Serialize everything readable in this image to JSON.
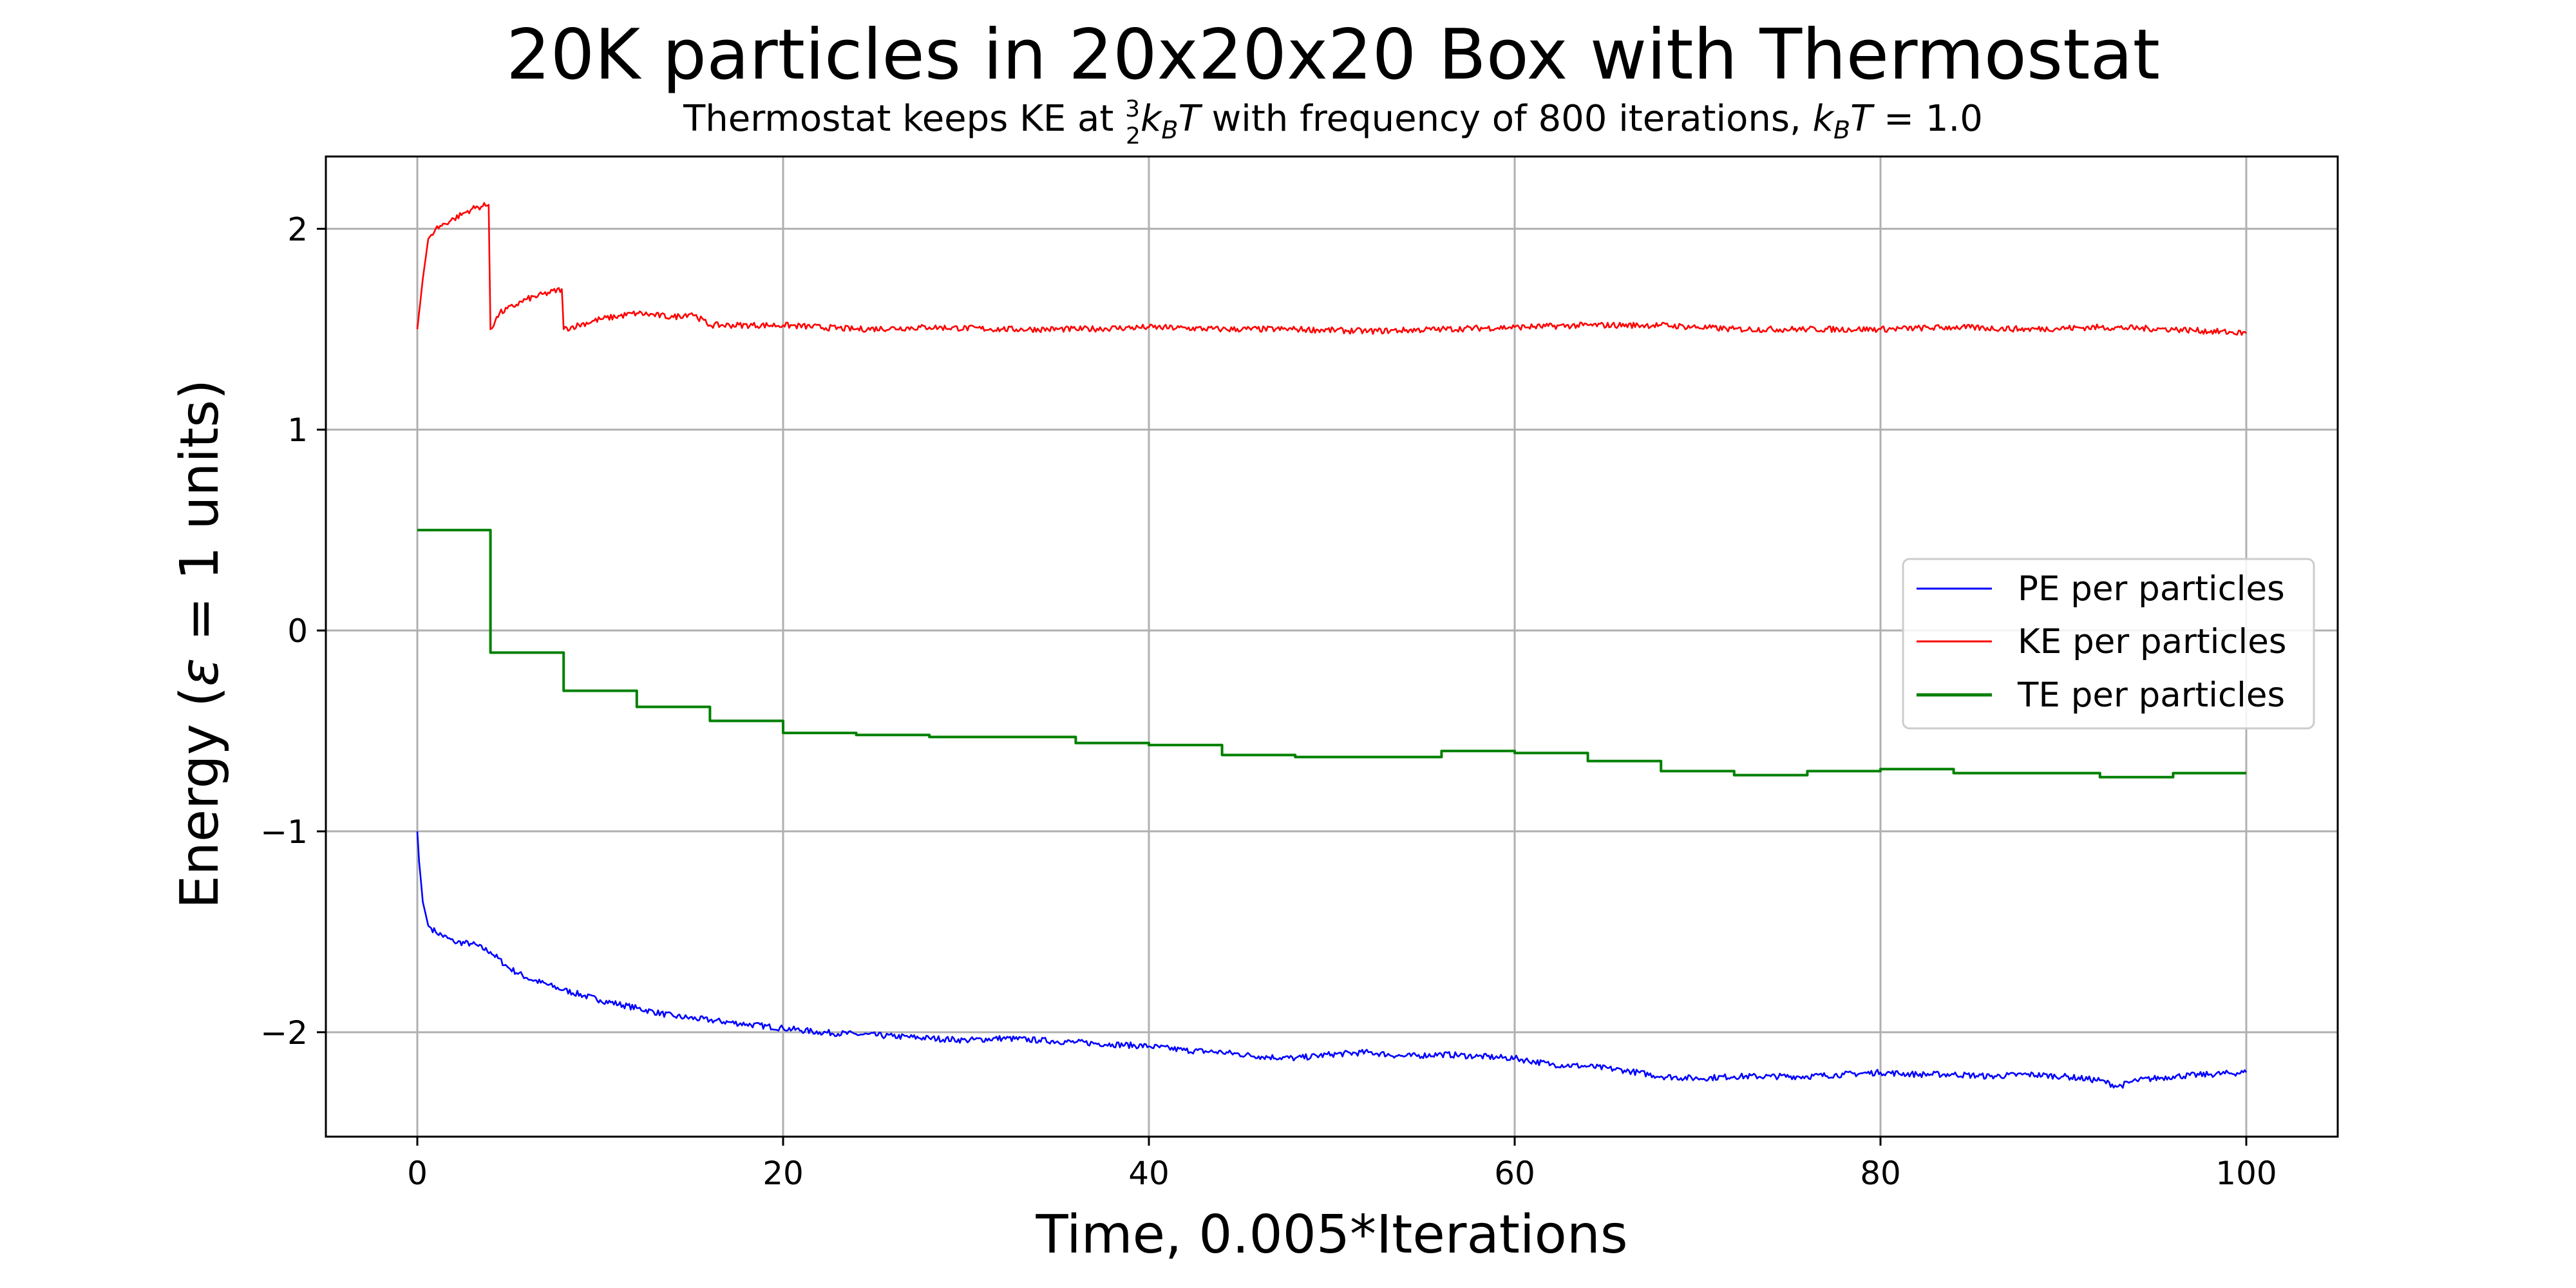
{
  "chart_data": {
    "type": "line",
    "title": "20K particles in 20x20x20 Box with Thermostat",
    "subtitle": {
      "prefix": "Thermostat keeps KE at ",
      "frac_num": "3",
      "frac_den": "2",
      "kt_k": "k",
      "kt_sub": "B",
      "kt_t": "T",
      "middle": " with frequency of 800 iterations, ",
      "suffix": " = 1.0"
    },
    "xlabel": "Time, 0.005*Iterations",
    "ylabel": {
      "prefix": "Energy (",
      "symbol": "ε",
      "suffix": " = 1 units)"
    },
    "xlim": [
      -5,
      105
    ],
    "ylim": [
      -2.52,
      2.36
    ],
    "xticks": [
      0,
      20,
      40,
      60,
      80,
      100
    ],
    "yticks": [
      2,
      1,
      0,
      -1,
      -2
    ],
    "ytick_labels": [
      "2",
      "1",
      "0",
      "−1",
      "−2"
    ],
    "grid": true,
    "legend_position": "center-right",
    "series": [
      {
        "name": "PE per particles",
        "color": "#0000ff",
        "style": "noisy",
        "x": [
          0,
          0.1,
          0.3,
          0.6,
          1,
          2,
          3,
          4,
          5,
          6,
          8,
          10,
          12,
          14,
          16,
          18,
          20,
          22,
          24,
          26,
          28,
          30,
          32,
          34,
          36,
          38,
          40,
          42,
          44,
          46,
          48,
          50,
          52,
          54,
          56,
          58,
          60,
          62,
          64,
          66,
          68,
          70,
          72,
          74,
          76,
          78,
          80,
          82,
          84,
          86,
          88,
          90,
          92,
          93,
          94,
          96,
          98,
          100
        ],
        "y": [
          -1.0,
          -1.15,
          -1.35,
          -1.47,
          -1.5,
          -1.55,
          -1.56,
          -1.6,
          -1.68,
          -1.73,
          -1.79,
          -1.84,
          -1.88,
          -1.92,
          -1.94,
          -1.96,
          -1.98,
          -2.0,
          -2.01,
          -2.02,
          -2.03,
          -2.04,
          -2.03,
          -2.04,
          -2.05,
          -2.06,
          -2.07,
          -2.09,
          -2.1,
          -2.12,
          -2.13,
          -2.11,
          -2.1,
          -2.12,
          -2.11,
          -2.12,
          -2.13,
          -2.16,
          -2.17,
          -2.19,
          -2.22,
          -2.23,
          -2.22,
          -2.22,
          -2.22,
          -2.21,
          -2.2,
          -2.21,
          -2.21,
          -2.22,
          -2.21,
          -2.22,
          -2.24,
          -2.27,
          -2.24,
          -2.22,
          -2.21,
          -2.2
        ]
      },
      {
        "name": "KE per particles",
        "color": "#ff0000",
        "style": "noisy",
        "x": [
          0,
          0.3,
          0.6,
          1.0,
          2.0,
          3.0,
          3.9,
          4.0,
          4.5,
          6.0,
          7.9,
          8.0,
          10,
          12,
          14,
          15,
          16,
          20,
          24,
          28,
          32,
          36,
          40,
          44,
          48,
          52,
          56,
          60,
          64,
          68,
          72,
          76,
          80,
          84,
          88,
          92,
          96,
          100
        ],
        "y": [
          1.5,
          1.75,
          1.95,
          2.0,
          2.05,
          2.1,
          2.12,
          1.5,
          1.58,
          1.65,
          1.7,
          1.5,
          1.55,
          1.58,
          1.56,
          1.58,
          1.52,
          1.52,
          1.5,
          1.51,
          1.5,
          1.5,
          1.51,
          1.5,
          1.5,
          1.49,
          1.5,
          1.51,
          1.52,
          1.52,
          1.5,
          1.5,
          1.5,
          1.51,
          1.5,
          1.51,
          1.5,
          1.48
        ]
      },
      {
        "name": "TE per particles",
        "color": "#008000",
        "style": "step",
        "x": [
          0,
          4,
          8,
          12,
          16,
          20,
          24,
          28,
          32,
          36,
          40,
          44,
          48,
          52,
          56,
          60,
          64,
          68,
          72,
          76,
          80,
          84,
          88,
          92,
          96,
          100
        ],
        "y": [
          0.5,
          -0.11,
          -0.3,
          -0.38,
          -0.45,
          -0.51,
          -0.52,
          -0.53,
          -0.53,
          -0.56,
          -0.57,
          -0.62,
          -0.63,
          -0.63,
          -0.6,
          -0.61,
          -0.65,
          -0.7,
          -0.72,
          -0.7,
          -0.69,
          -0.71,
          -0.71,
          -0.73,
          -0.71,
          -0.71
        ]
      }
    ]
  }
}
